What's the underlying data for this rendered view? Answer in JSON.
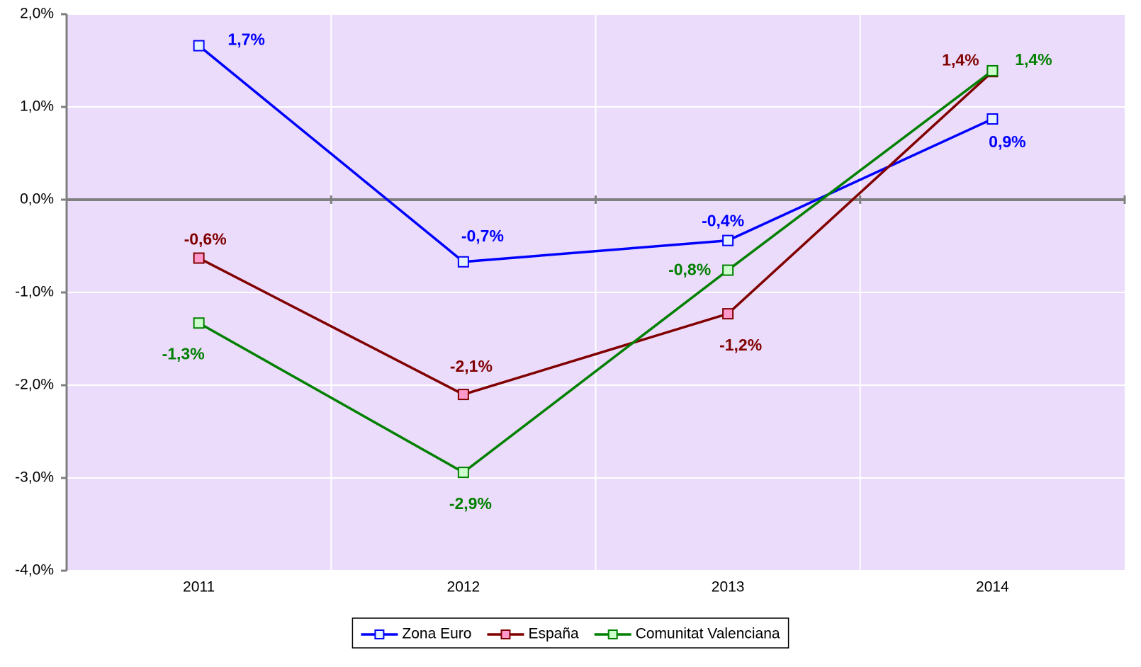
{
  "chart_data": {
    "type": "line",
    "categories": [
      "2011",
      "2012",
      "2013",
      "2014"
    ],
    "series": [
      {
        "name": "Zona Euro",
        "color": "#0000ff",
        "marker_color": "#e6f2ff",
        "values": [
          1.66,
          -0.67,
          -0.44,
          0.87
        ],
        "value_labels": [
          "1,7%",
          "-0,7%",
          "-0,4%",
          "0,9%"
        ]
      },
      {
        "name": "España",
        "color": "#800000",
        "marker_color": "#ff99cc",
        "values": [
          -0.63,
          -2.1,
          -1.23,
          1.38
        ],
        "value_labels": [
          "-0,6%",
          "-2,1%",
          "-1,2%",
          "1,4%"
        ]
      },
      {
        "name": "Comunitat Valenciana",
        "color": "#008000",
        "marker_color": "#ccffcc",
        "values": [
          -1.33,
          -2.94,
          -0.76,
          1.39
        ],
        "value_labels": [
          "-1,3%",
          "-2,9%",
          "-0,8%",
          "1,4%"
        ]
      }
    ],
    "ylim": [
      -4,
      2
    ],
    "yticks": [
      {
        "value": -4,
        "label": "-4,0%"
      },
      {
        "value": -3,
        "label": "-3,0%"
      },
      {
        "value": -2,
        "label": "-2,0%"
      },
      {
        "value": -1,
        "label": "-1,0%"
      },
      {
        "value": 0,
        "label": "0,0%"
      },
      {
        "value": 1,
        "label": "1,0%"
      },
      {
        "value": 2,
        "label": "2,0%"
      }
    ],
    "grid": true,
    "plot_background": "#ecdcfb",
    "legend": "bottom"
  }
}
